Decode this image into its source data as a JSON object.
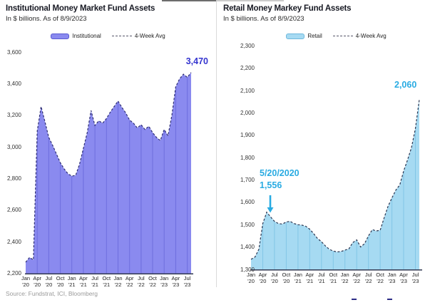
{
  "source_note": "Source: Fundstrat, ICI, Bloomberg",
  "chart_data": [
    {
      "id": "institutional-mmf",
      "type": "area",
      "title": "Institutional Money Market Fund Assets",
      "subtitle": "In $ billions. As of 8/9/2023",
      "legend": [
        {
          "label": "Institutional",
          "type": "area"
        },
        {
          "label": "4-Week Avg",
          "type": "dashed"
        }
      ],
      "legend_position": "top-center",
      "grid": "vertical-gridlines-inside-area",
      "ylim": [
        2200,
        3600
      ],
      "ytick_step": 200,
      "x_ticks": {
        "months": [
          "Jan",
          "Apr",
          "Jul",
          "Oct",
          "Jan",
          "Apr",
          "Jul",
          "Oct",
          "Jan",
          "Apr",
          "Jul",
          "Oct",
          "Jan",
          "Apr",
          "Jul"
        ],
        "years": [
          "'20",
          "'20",
          "'20",
          "'20",
          "'21",
          "'21",
          "'21",
          "'21",
          "'22",
          "'22",
          "'22",
          "'22",
          "'23",
          "'23",
          "'23"
        ]
      },
      "categories": [
        "Jan '20",
        "Feb '20",
        "Mar '20",
        "Apr '20",
        "May '20",
        "Jun '20",
        "Jul '20",
        "Aug '20",
        "Sep '20",
        "Oct '20",
        "Nov '20",
        "Dec '20",
        "Jan '21",
        "Feb '21",
        "Mar '21",
        "Apr '21",
        "May '21",
        "Jun '21",
        "Jul '21",
        "Aug '21",
        "Sep '21",
        "Oct '21",
        "Nov '21",
        "Dec '21",
        "Jan '22",
        "Feb '22",
        "Mar '22",
        "Apr '22",
        "May '22",
        "Jun '22",
        "Jul '22",
        "Aug '22",
        "Sep '22",
        "Oct '22",
        "Nov '22",
        "Dec '22",
        "Jan '23",
        "Feb '23",
        "Mar '23",
        "Apr '23",
        "May '23",
        "Jun '23",
        "Jul '23",
        "Aug '23"
      ],
      "series": [
        {
          "name": "Institutional",
          "values": [
            2270,
            2300,
            2285,
            3100,
            3255,
            3160,
            3060,
            3010,
            2955,
            2900,
            2860,
            2830,
            2815,
            2820,
            2890,
            2990,
            3090,
            3230,
            3135,
            3165,
            3150,
            3180,
            3220,
            3255,
            3290,
            3250,
            3215,
            3170,
            3150,
            3120,
            3140,
            3110,
            3130,
            3090,
            3060,
            3040,
            3110,
            3070,
            3200,
            3380,
            3430,
            3460,
            3440,
            3470
          ]
        },
        {
          "name": "4-Week Avg",
          "values": [
            2270,
            2300,
            2285,
            3100,
            3255,
            3160,
            3060,
            3010,
            2955,
            2900,
            2860,
            2830,
            2815,
            2820,
            2890,
            2990,
            3090,
            3230,
            3135,
            3165,
            3150,
            3180,
            3220,
            3255,
            3290,
            3250,
            3215,
            3170,
            3150,
            3120,
            3140,
            3110,
            3130,
            3090,
            3060,
            3040,
            3110,
            3070,
            3200,
            3380,
            3430,
            3460,
            3440,
            3470
          ]
        }
      ],
      "annotations": [
        {
          "text": "3,470",
          "x": "Aug '23",
          "y": 3470
        }
      ],
      "colors": {
        "fill": "#8a8aef",
        "fill_border": "#5a5ad2",
        "gridline": "#6e6ede",
        "avg_line": "#2e2e72",
        "annotation": "#3535cf",
        "axis": "#1c2440"
      }
    },
    {
      "id": "retail-mmf",
      "type": "area",
      "title": "Retail Money Markey Fund Assets",
      "subtitle": "In $ billions. As of 8/9/2023",
      "legend": [
        {
          "label": "Retail",
          "type": "area"
        },
        {
          "label": "4-Week Avg",
          "type": "dashed"
        }
      ],
      "legend_position": "top-center",
      "grid": "vertical-gridlines-inside-area",
      "ylim": [
        1300,
        2300
      ],
      "ytick_step": 100,
      "x_ticks": {
        "months": [
          "Jan",
          "Apr",
          "Jul",
          "Oct",
          "Jan",
          "Apr",
          "Jul",
          "Oct",
          "Jan",
          "Apr",
          "Jul",
          "Oct",
          "Jan",
          "Apr",
          "Jul"
        ],
        "years": [
          "'20",
          "'20",
          "'20",
          "'20",
          "'21",
          "'21",
          "'21",
          "'21",
          "'22",
          "'22",
          "'22",
          "'22",
          "'23",
          "'23",
          "'23"
        ]
      },
      "categories": [
        "Jan '20",
        "Feb '20",
        "Mar '20",
        "Apr '20",
        "May '20",
        "Jun '20",
        "Jul '20",
        "Aug '20",
        "Sep '20",
        "Oct '20",
        "Nov '20",
        "Dec '20",
        "Jan '21",
        "Feb '21",
        "Mar '21",
        "Apr '21",
        "May '21",
        "Jun '21",
        "Jul '21",
        "Aug '21",
        "Sep '21",
        "Oct '21",
        "Nov '21",
        "Dec '21",
        "Jan '22",
        "Feb '22",
        "Mar '22",
        "Apr '22",
        "May '22",
        "Jun '22",
        "Jul '22",
        "Aug '22",
        "Sep '22",
        "Oct '22",
        "Nov '22",
        "Dec '22",
        "Jan '23",
        "Feb '23",
        "Mar '23",
        "Apr '23",
        "May '23",
        "Jun '23",
        "Jul '23",
        "Aug '23"
      ],
      "series": [
        {
          "name": "Retail",
          "values": [
            1345,
            1355,
            1390,
            1505,
            1556,
            1535,
            1515,
            1505,
            1503,
            1512,
            1515,
            1505,
            1500,
            1498,
            1493,
            1480,
            1460,
            1438,
            1424,
            1405,
            1390,
            1382,
            1378,
            1380,
            1386,
            1392,
            1420,
            1432,
            1400,
            1415,
            1450,
            1478,
            1472,
            1475,
            1530,
            1582,
            1620,
            1655,
            1678,
            1740,
            1790,
            1845,
            1930,
            2060
          ]
        },
        {
          "name": "4-Week Avg",
          "values": [
            1345,
            1355,
            1390,
            1505,
            1556,
            1535,
            1515,
            1505,
            1503,
            1512,
            1515,
            1505,
            1500,
            1498,
            1493,
            1480,
            1460,
            1438,
            1424,
            1405,
            1390,
            1382,
            1378,
            1380,
            1386,
            1392,
            1420,
            1432,
            1400,
            1415,
            1450,
            1478,
            1472,
            1475,
            1530,
            1582,
            1620,
            1655,
            1678,
            1740,
            1790,
            1845,
            1930,
            2060
          ]
        }
      ],
      "annotations": [
        {
          "text": "5/20/2020",
          "x": "May '20"
        },
        {
          "text": "1,556",
          "x": "May '20",
          "y": 1556
        },
        {
          "text": "2,060",
          "x": "Aug '23",
          "y": 2060
        }
      ],
      "colors": {
        "fill": "#a6daf2",
        "fill_border": "#6fb8dd",
        "gridline": "#82c6e6",
        "avg_line": "#2a3550",
        "annotation": "#29abe2",
        "axis": "#1c2440"
      }
    }
  ]
}
